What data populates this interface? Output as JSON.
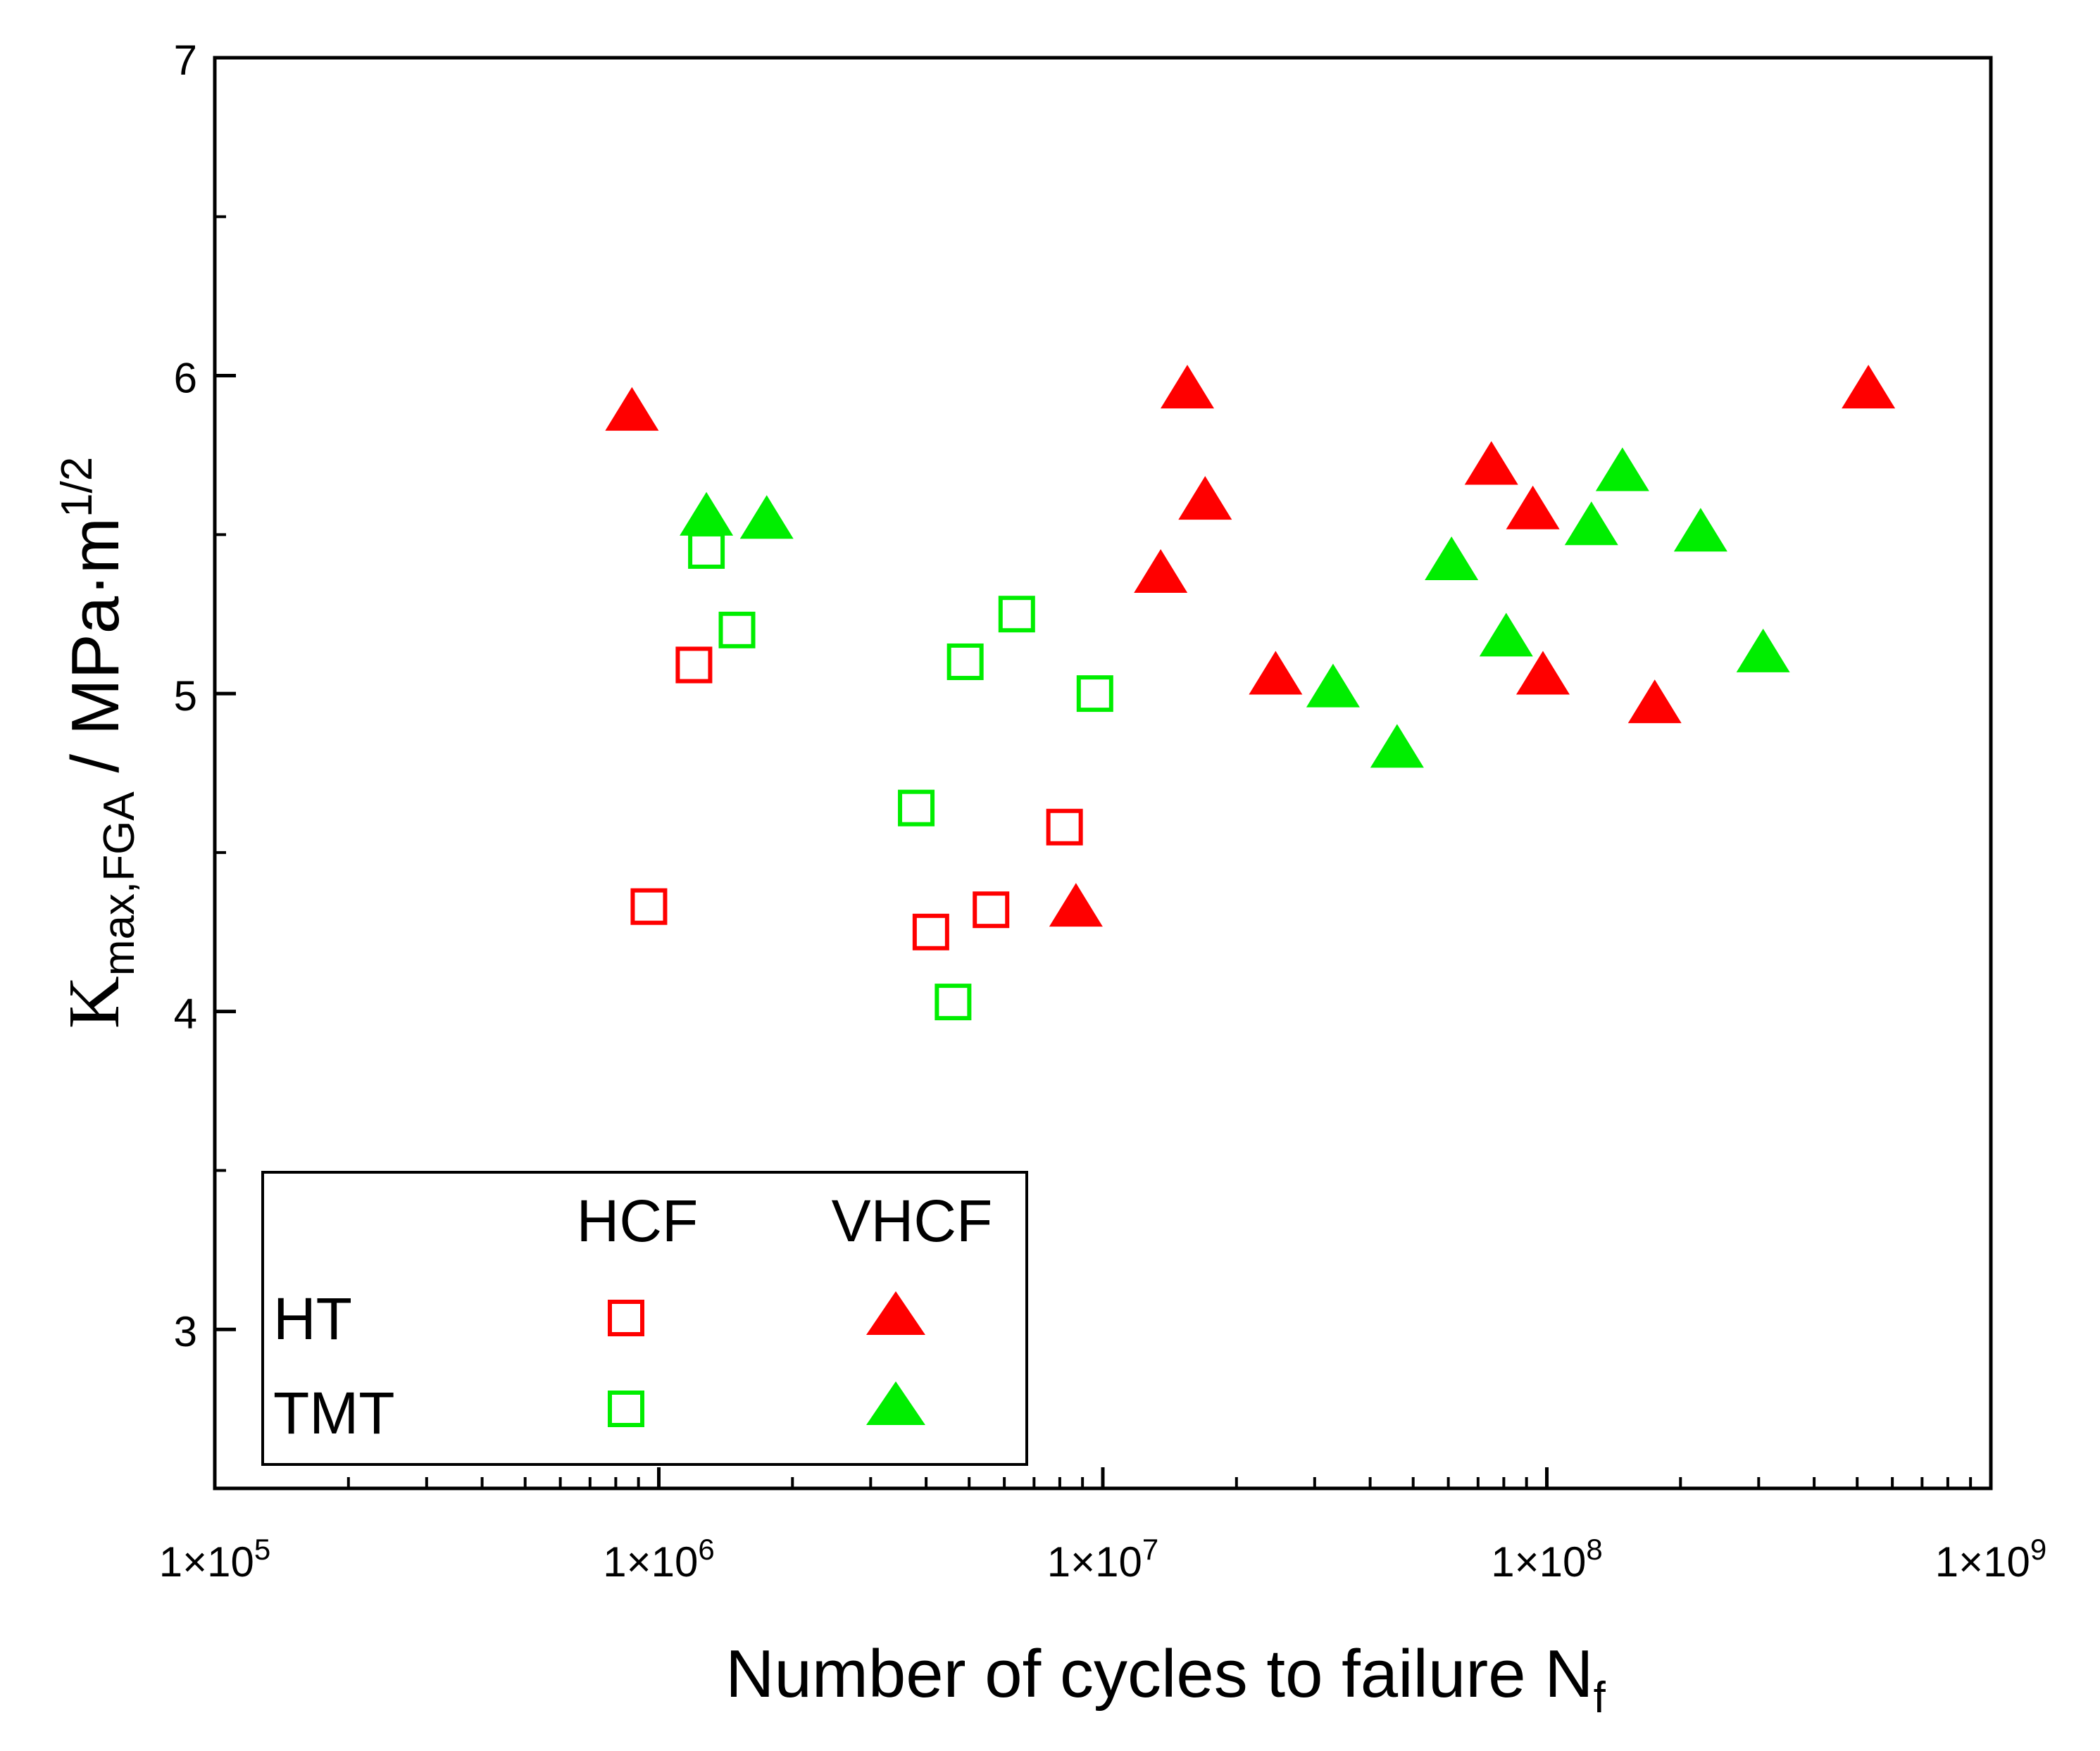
{
  "chart_data": {
    "type": "scatter",
    "x_scale": "log",
    "xlim": [
      100000,
      1000000000
    ],
    "ylim": [
      2.5,
      7
    ],
    "x_tick_labels": [
      {
        "value": 100000,
        "base": "1×10",
        "exp": "5"
      },
      {
        "value": 1000000,
        "base": "1×10",
        "exp": "6"
      },
      {
        "value": 10000000,
        "base": "1×10",
        "exp": "7"
      },
      {
        "value": 100000000,
        "base": "1×10",
        "exp": "8"
      },
      {
        "value": 1000000000,
        "base": "1×10",
        "exp": "9"
      }
    ],
    "y_ticks": [
      3,
      4,
      5,
      6,
      7
    ],
    "xlabel": {
      "main": "Number of cycles to failure N",
      "sub": "f"
    },
    "ylabel": {
      "k": "K",
      "sub": "max,FGA",
      "unit": " / MPa·m",
      "sup": "1/2"
    },
    "legend": {
      "col_headers": [
        "HCF",
        "VHCF"
      ],
      "row_labels": [
        "HT",
        "TMT"
      ]
    },
    "colors": {
      "HT": "#ff0000",
      "TMT": "#00ee00"
    },
    "series": [
      {
        "name": "HT HCF",
        "group": "HT",
        "marker": "open-square",
        "color": "#ff0000",
        "points": [
          [
            1200000,
            5.09
          ],
          [
            950000,
            4.33
          ],
          [
            4100000,
            4.25
          ],
          [
            5600000,
            4.32
          ],
          [
            8200000,
            4.58
          ]
        ]
      },
      {
        "name": "HT VHCF",
        "group": "HT",
        "marker": "filled-triangle",
        "color": "#ff0000",
        "points": [
          [
            870000,
            5.88
          ],
          [
            8700000,
            4.32
          ],
          [
            13500000,
            5.37
          ],
          [
            15500000,
            5.95
          ],
          [
            17000000,
            5.6
          ],
          [
            24500000,
            5.05
          ],
          [
            75000000,
            5.71
          ],
          [
            93000000,
            5.57
          ],
          [
            98000000,
            5.05
          ],
          [
            175000000,
            4.96
          ],
          [
            530000000,
            5.95
          ]
        ]
      },
      {
        "name": "TMT HCF",
        "group": "TMT",
        "marker": "open-square",
        "color": "#00ee00",
        "points": [
          [
            1280000,
            5.45
          ],
          [
            1500000,
            5.2
          ],
          [
            3800000,
            4.64
          ],
          [
            4600000,
            4.03
          ],
          [
            4900000,
            5.1
          ],
          [
            6400000,
            5.25
          ],
          [
            9600000,
            5.0
          ]
        ]
      },
      {
        "name": "TMT VHCF",
        "group": "TMT",
        "marker": "filled-triangle",
        "color": "#00ee00",
        "points": [
          [
            1280000,
            5.55
          ],
          [
            1750000,
            5.54
          ],
          [
            33000000,
            5.01
          ],
          [
            46000000,
            4.82
          ],
          [
            61000000,
            5.41
          ],
          [
            81000000,
            5.17
          ],
          [
            126000000,
            5.52
          ],
          [
            148000000,
            5.69
          ],
          [
            222000000,
            5.5
          ],
          [
            307000000,
            5.12
          ]
        ]
      }
    ]
  }
}
